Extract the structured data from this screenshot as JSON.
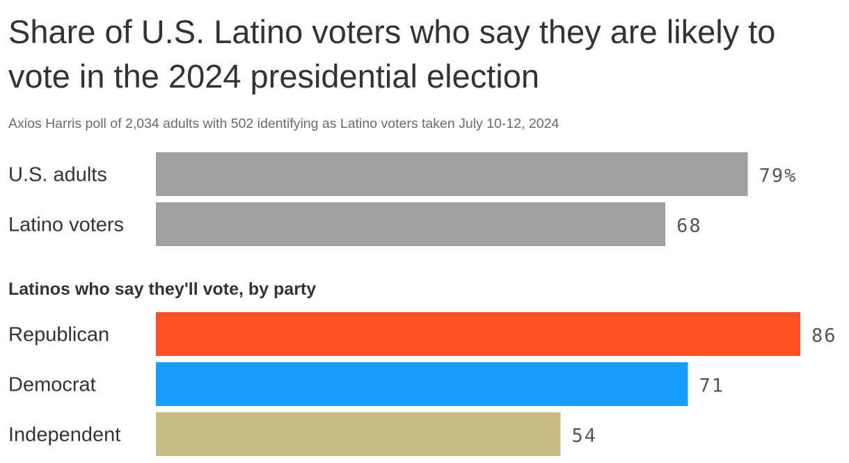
{
  "title": "Share of U.S. Latino voters who say they are likely to vote in the 2024 presidential election",
  "subtitle": "Axios Harris poll of 2,034 adults with 502 identifying as Latino voters taken July 10-12, 2024",
  "section_header": "Latinos who say they'll vote, by party",
  "chart_data": {
    "type": "bar",
    "orientation": "horizontal",
    "title": "Share of U.S. Latino voters who say they are likely to vote in the 2024 presidential election",
    "subtitle": "Axios Harris poll of 2,034 adults with 502 identifying as Latino voters taken July 10-12, 2024",
    "xlim": [
      0,
      86
    ],
    "grid": false,
    "groups": [
      {
        "header": "",
        "bars": [
          {
            "category": "U.S. adults",
            "value": 79,
            "label": "79%",
            "color": "#a0a1a0"
          },
          {
            "category": "Latino voters",
            "value": 68,
            "label": "68",
            "color": "#a0a1a0"
          }
        ]
      },
      {
        "header": "Latinos who say they'll vote, by party",
        "bars": [
          {
            "category": "Republican",
            "value": 86,
            "label": "86",
            "color": "#ff5021"
          },
          {
            "category": "Democrat",
            "value": 71,
            "label": "71",
            "color": "#179ffd"
          },
          {
            "category": "Independent",
            "value": 54,
            "label": "54",
            "color": "#c9bd84"
          }
        ]
      }
    ]
  }
}
